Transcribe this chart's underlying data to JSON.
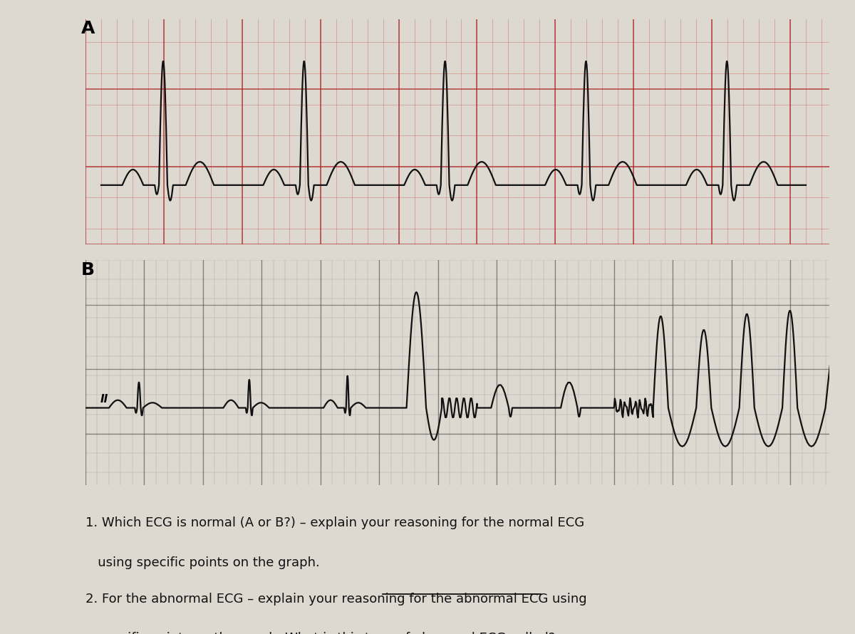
{
  "bg_color": "#ddd8d0",
  "ecg_A_bg": "#f0c8c8",
  "ecg_B_bg": "#c8c4bc",
  "ecg_line_color": "#111111",
  "label_A": "A",
  "label_B": "B",
  "label_II": "II",
  "q1_line1": "1. Which ECG is normal (A or B?) – explain your reasoning for the normal ECG",
  "q1_line2": "   using specific points on the graph.",
  "q2_line1": "2. For the abnormal ECG – explain your reasoning for the abnormal ECG using",
  "q2_line2": "   specific points on the graph. What is this type of abnormal ECG called?",
  "text_color": "#111111",
  "fig_width": 12.0,
  "fig_height": 8.9
}
